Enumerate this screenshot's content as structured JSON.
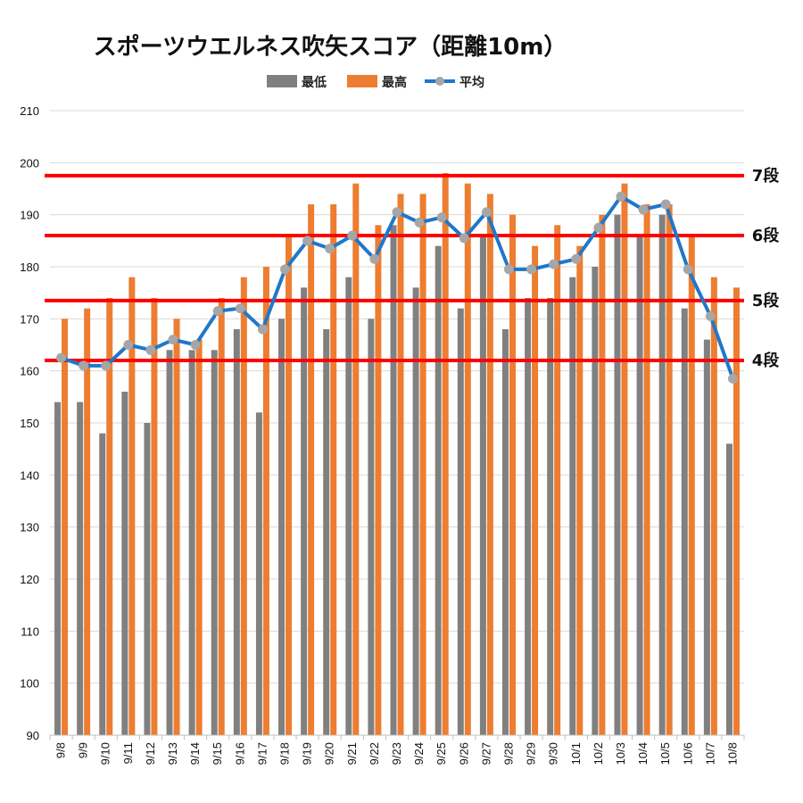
{
  "chart_data": {
    "type": "bar",
    "title": "スポーツウエルネス吹矢スコア（距離10m）",
    "categories": [
      "9/8",
      "9/9",
      "9/10",
      "9/11",
      "9/12",
      "9/13",
      "9/14",
      "9/15",
      "9/16",
      "9/17",
      "9/18",
      "9/19",
      "9/20",
      "9/21",
      "9/22",
      "9/23",
      "9/24",
      "9/25",
      "9/26",
      "9/27",
      "9/28",
      "9/29",
      "9/30",
      "10/1",
      "10/2",
      "10/3",
      "10/4",
      "10/5",
      "10/6",
      "10/7",
      "10/8"
    ],
    "series": [
      {
        "name": "最低",
        "kind": "bar",
        "color": "#808080",
        "values": [
          154,
          154,
          148,
          156,
          150,
          164,
          164,
          164,
          168,
          152,
          170,
          176,
          168,
          178,
          170,
          188,
          176,
          184,
          172,
          186,
          168,
          174,
          174,
          178,
          180,
          190,
          186,
          190,
          172,
          166,
          146
        ]
      },
      {
        "name": "最高",
        "kind": "bar",
        "color": "#ED7D31",
        "values": [
          170,
          172,
          174,
          178,
          174,
          170,
          166,
          174,
          178,
          180,
          186,
          192,
          192,
          196,
          188,
          194,
          194,
          198,
          196,
          194,
          190,
          184,
          188,
          184,
          190,
          196,
          192,
          192,
          186,
          178,
          176
        ]
      },
      {
        "name": "平均",
        "kind": "line",
        "color": "#1F78C8",
        "marker_color": "#A6A6A6",
        "values": [
          162.5,
          161,
          161,
          165,
          164,
          166,
          165,
          171.5,
          172,
          168,
          179.5,
          185,
          183.5,
          186,
          181.5,
          190.5,
          188.5,
          189.5,
          185.5,
          190.5,
          179.5,
          179.5,
          180.5,
          181.5,
          187.5,
          193.5,
          191,
          192,
          179.5,
          170.5,
          158.5
        ]
      }
    ],
    "reference_lines": [
      {
        "label": "7段",
        "value": 197.5,
        "color": "#FF0000"
      },
      {
        "label": "6段",
        "value": 186,
        "color": "#FF0000"
      },
      {
        "label": "5段",
        "value": 173.5,
        "color": "#FF0000"
      },
      {
        "label": "4段",
        "value": 162,
        "color": "#FF0000"
      }
    ],
    "ylim": [
      90,
      210
    ],
    "yticks": [
      90,
      100,
      110,
      120,
      130,
      140,
      150,
      160,
      170,
      180,
      190,
      200,
      210
    ],
    "grid": true,
    "legend_position": "top"
  }
}
